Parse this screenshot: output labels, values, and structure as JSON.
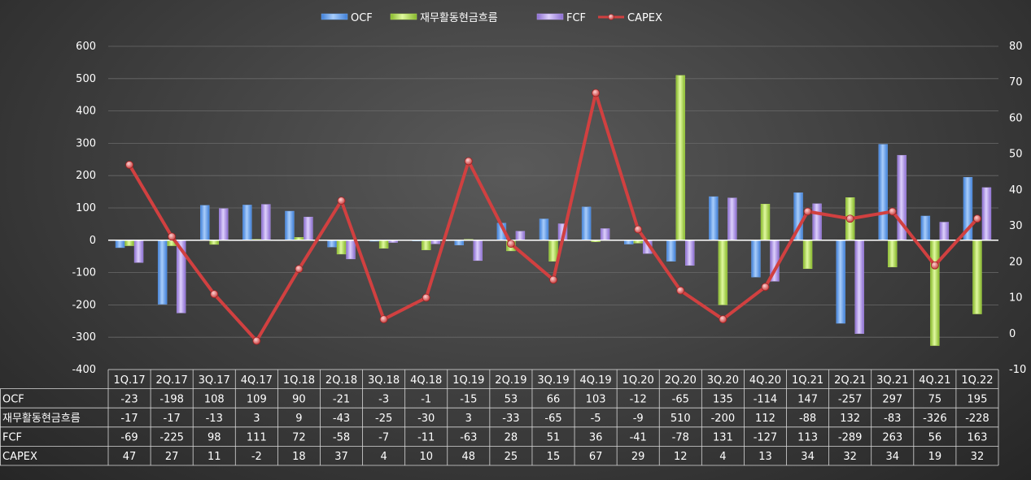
{
  "chart_data": {
    "type": "bar",
    "categories": [
      "1Q.17",
      "2Q.17",
      "3Q.17",
      "4Q.17",
      "1Q.18",
      "2Q.18",
      "3Q.18",
      "4Q.18",
      "1Q.19",
      "2Q.19",
      "3Q.19",
      "4Q.19",
      "1Q.20",
      "2Q.20",
      "3Q.20",
      "4Q.20",
      "1Q.21",
      "2Q.21",
      "3Q.21",
      "4Q.21",
      "1Q.22"
    ],
    "series": [
      {
        "name": "OCF",
        "kind": "bar",
        "axis": "left",
        "color": "#6fa8f0",
        "values": [
          -23,
          -198,
          108,
          109,
          90,
          -21,
          -3,
          -1,
          -15,
          53,
          66,
          103,
          -12,
          -65,
          135,
          -114,
          147,
          -257,
          297,
          75,
          195
        ]
      },
      {
        "name": "재무활동현금흐름",
        "kind": "bar",
        "axis": "left",
        "color": "#b5e05a",
        "values": [
          -17,
          -17,
          -13,
          3,
          9,
          -43,
          -25,
          -30,
          3,
          -33,
          -65,
          -5,
          -9,
          510,
          -200,
          112,
          -88,
          132,
          -83,
          -326,
          -228
        ]
      },
      {
        "name": "FCF",
        "kind": "bar",
        "axis": "left",
        "color": "#b79cf0",
        "values": [
          -69,
          -225,
          98,
          111,
          72,
          -58,
          -7,
          -11,
          -63,
          28,
          51,
          36,
          -41,
          -78,
          131,
          -127,
          113,
          -289,
          263,
          56,
          163
        ]
      },
      {
        "name": "CAPEX",
        "kind": "line",
        "axis": "right",
        "color": "#d14040",
        "values": [
          47,
          27,
          11,
          -2,
          18,
          37,
          4,
          10,
          48,
          25,
          15,
          67,
          29,
          12,
          4,
          13,
          34,
          32,
          34,
          19,
          32
        ]
      }
    ],
    "y_left": {
      "min": -400,
      "max": 600,
      "step": 100,
      "ticks": [
        "600",
        "500",
        "400",
        "300",
        "200",
        "100",
        "0",
        "-100",
        "-200",
        "-300",
        "-400"
      ]
    },
    "y_right": {
      "min": -10,
      "max": 80,
      "step": 10,
      "ticks": [
        "80",
        "70",
        "60",
        "50",
        "40",
        "30",
        "20",
        "10",
        "0",
        "-10"
      ]
    },
    "legend_position": "top",
    "grid": true,
    "data_table": true
  }
}
